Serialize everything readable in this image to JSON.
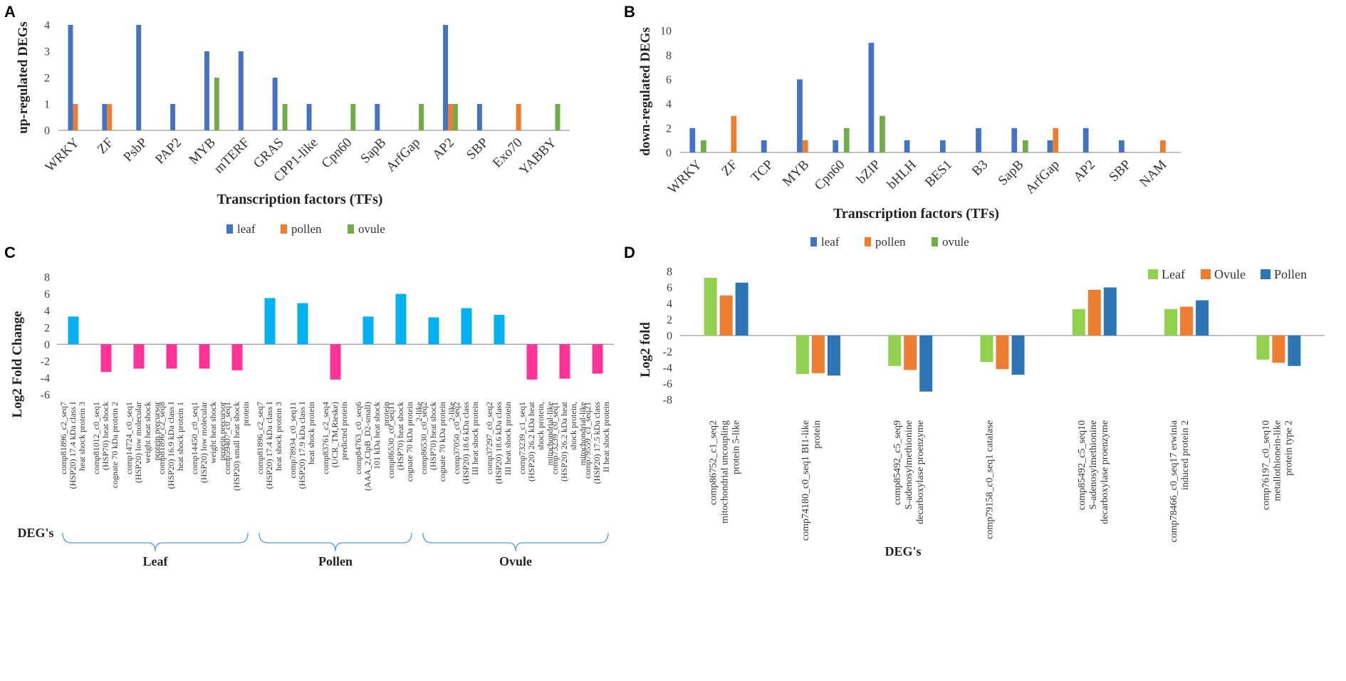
{
  "colors": {
    "leaf": "#4472C4",
    "pollen": "#ED7D31",
    "ovule": "#70AD47",
    "leaf_d": "#92D050",
    "ovule_d": "#ED7D31",
    "pollen_d": "#2E75B6",
    "c_pos": "#00B0F0",
    "c_neg": "#FF3399",
    "axis": "#808080"
  },
  "chart_data": [
    {
      "panel": "A",
      "type": "bar",
      "ylabel": "up-regulated DEGs",
      "xlabel": "Transcription  factors (TFs)",
      "ylim": [
        0,
        4
      ],
      "yticks": [
        0,
        1,
        2,
        3,
        4
      ],
      "categories": [
        "WRKY",
        "ZF",
        "PsbP",
        "PAP2",
        "MYB",
        "mTERF",
        "GRAS",
        "CPP1-like",
        "Cpn60",
        "SapB",
        "ArfGap",
        "AP2",
        "SBP",
        "Exo70",
        "YABBY"
      ],
      "series": [
        {
          "name": "leaf",
          "values": [
            4,
            1,
            4,
            1,
            3,
            3,
            2,
            1,
            0,
            1,
            0,
            4,
            1,
            0,
            0
          ]
        },
        {
          "name": "pollen",
          "values": [
            1,
            1,
            0,
            0,
            0,
            0,
            0,
            0,
            0,
            0,
            0,
            1,
            0,
            1,
            0
          ]
        },
        {
          "name": "ovule",
          "values": [
            0,
            0,
            0,
            0,
            2,
            0,
            1,
            0,
            1,
            0,
            1,
            1,
            0,
            0,
            1
          ]
        }
      ],
      "legend": [
        "leaf",
        "pollen",
        "ovule"
      ]
    },
    {
      "panel": "B",
      "type": "bar",
      "ylabel": "down-regulated DEGs",
      "xlabel": "Transcription  factors (TFs)",
      "ylim": [
        0,
        10
      ],
      "yticks": [
        0,
        2,
        4,
        6,
        8,
        10
      ],
      "categories": [
        "WRKY",
        "ZF",
        "TCP",
        "MYB",
        "Cpn60",
        "bZIP",
        "bHLH",
        "BES1",
        "B3",
        "SapB",
        "ArfGap",
        "AP2",
        "SBP",
        "NAM"
      ],
      "series": [
        {
          "name": "leaf",
          "values": [
            2,
            0,
            1,
            6,
            1,
            9,
            1,
            1,
            2,
            2,
            1,
            2,
            1,
            0
          ]
        },
        {
          "name": "pollen",
          "values": [
            0,
            3,
            0,
            1,
            0,
            0,
            0,
            0,
            0,
            0,
            2,
            0,
            0,
            1
          ]
        },
        {
          "name": "ovule",
          "values": [
            1,
            0,
            0,
            0,
            2,
            3,
            0,
            0,
            0,
            1,
            0,
            0,
            0,
            0
          ]
        }
      ],
      "legend": [
        "leaf",
        "pollen",
        "ovule"
      ]
    },
    {
      "panel": "C",
      "type": "bar",
      "ylabel": "Log2 Fold Change",
      "xlabel": "DEG's",
      "ylim": [
        -6,
        8
      ],
      "yticks": [
        -6,
        -4,
        -2,
        0,
        2,
        4,
        6,
        8
      ],
      "categories": [
        "comp81896_c2_seq7 (HSP20) 17.4 kDa class I heat shock protein 3",
        "comp81012_c0_seq1 (HSP70) heat shock cognate 70 kDa protein 2",
        "comp14724_c0_seq1 (HSP20) low molecular weight heat shock protein precursor",
        "comp81896_c2_seq8 (HSP20) 16.9 kDa class I heat shock protein 1",
        "comp14450_c0_seq1 (HSP20) low molecular weight heat shock protein precursor",
        "comp59407_c0_seq1 (HSP20) small heat shock protein",
        "comp81896_c2_seq7 (HSP20) 17.4 kDa class I heat shock protein 3",
        "comp78934_c0_seq11 (HSP20) 17.9 kDa class I heat shock protein",
        "comp83761_c2_seq4 (UCR_TM,Rieske) predicted protein",
        "comp84763_c0_seq6 (AAA_2,ClpB_D2-small) 101 kDa heat shock protein",
        "comp86530_c0_seq11 (HSP70) heat shock cognate 70 kDa protein 2-like",
        "comp86530_c0_seq2 (HSP70) heat shock cognate 70 kDa protein 2-like",
        "comp37050_c0_seq2 (HSP20) 18.6 kDa class III heat shock protein",
        "comp37297_c0_seq2 (HSP20) 18.6 kDa class III heat shock protein",
        "comp73239_c1_seq1 (HSP20) 26.2 kDa heat shock protein, mitochondrial-like",
        "comp73239_c0_seq1 (HSP20) 26.2 kDa heat shock protein, mitochondrial-like",
        "comp79559_c1_seq21 (HSP20) 17.5 kDa class II heat shock protein"
      ],
      "values": [
        3.3,
        -3.3,
        -2.9,
        -2.9,
        -2.9,
        -3.1,
        5.5,
        4.9,
        -4.2,
        3.3,
        6.0,
        3.2,
        4.3,
        3.5,
        -4.2,
        -4.1,
        -3.5
      ],
      "groups": [
        {
          "name": "Leaf",
          "count": 6
        },
        {
          "name": "Pollen",
          "count": 5
        },
        {
          "name": "Ovule",
          "count": 6
        }
      ]
    },
    {
      "panel": "D",
      "type": "bar",
      "ylabel": "Log2 fold",
      "xlabel": "DEG's",
      "ylim": [
        -8,
        8
      ],
      "yticks": [
        -8,
        -6,
        -4,
        -2,
        0,
        2,
        4,
        6,
        8
      ],
      "categories": [
        "comp86752_c1_seq2 mitochondrial uncoupling protein 5-like",
        "comp74180_c0_seq1 BI1-like protein",
        "comp85492_c5_seq9 S-adenosylmethionine decarboxylase proenzyme",
        "comp79158_c0_seq1 catalase",
        "comp85492_c5_seq10 S-adenosylmethionine decarboxylase proenzyme",
        "comp78466_c0_seq17 erwinia induced protein 2",
        "comp76197_c0_seq10 metallothionein-like protein type 2"
      ],
      "series": [
        {
          "name": "Leaf",
          "values": [
            7.2,
            -4.8,
            -3.8,
            -3.3,
            3.3,
            3.3,
            -3.0
          ]
        },
        {
          "name": "Ovule",
          "values": [
            5.0,
            -4.7,
            -4.3,
            -4.2,
            5.7,
            3.6,
            -3.4
          ]
        },
        {
          "name": "Pollen",
          "values": [
            6.6,
            -5.0,
            -7.0,
            -4.9,
            6.0,
            4.4,
            -3.8
          ]
        }
      ],
      "legend": [
        "Leaf",
        "Ovule",
        "Pollen"
      ]
    }
  ]
}
